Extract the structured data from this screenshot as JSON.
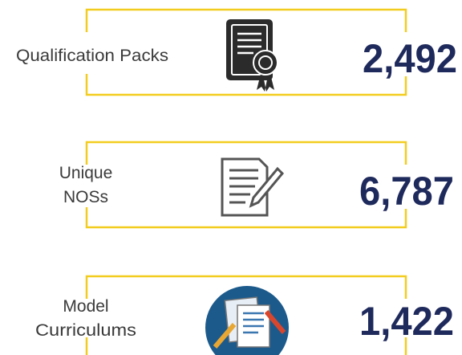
{
  "items": [
    {
      "label_lines": [
        "Qualification Packs"
      ],
      "value": "2,492"
    },
    {
      "label_lines": [
        "Unique",
        "NOSs"
      ],
      "value": "6,787"
    },
    {
      "label_lines": [
        "Model",
        "Curriculums"
      ],
      "value": "1,422"
    }
  ]
}
